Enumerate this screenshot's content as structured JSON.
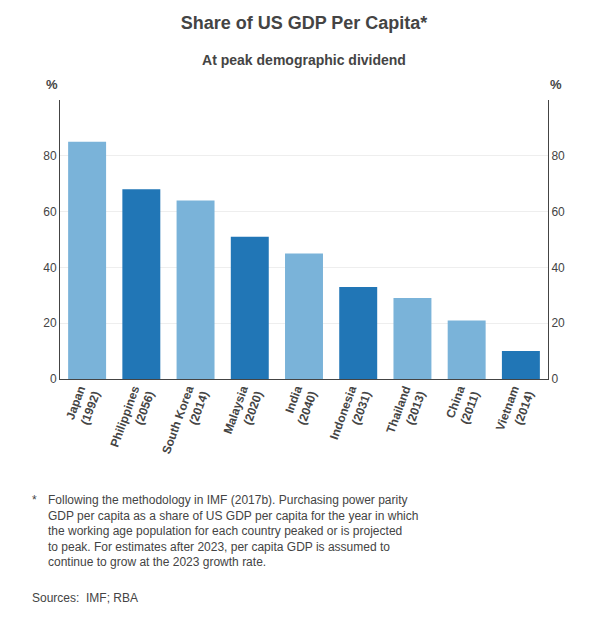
{
  "chart_data": {
    "type": "bar",
    "title": "Share of US GDP Per Capita*",
    "subtitle": "At peak demographic dividend",
    "categories": [
      "Japan\n(1992)",
      "Philippines\n(2056)",
      "South Korea\n(2014)",
      "Malaysia\n(2020)",
      "India\n(2040)",
      "Indonesia\n(2031)",
      "Thailand\n(2013)",
      "China\n(2011)",
      "Vietnam\n(2014)"
    ],
    "values": [
      85,
      68,
      64,
      51,
      45,
      33,
      29,
      21,
      10
    ],
    "colors": [
      "#7ab3d9",
      "#2176b6",
      "#7ab3d9",
      "#2176b6",
      "#7ab3d9",
      "#2176b6",
      "#7ab3d9",
      "#7ab3d9",
      "#2176b6"
    ],
    "ylim": [
      0,
      100
    ],
    "yticks": [
      0,
      20,
      40,
      60,
      80
    ],
    "y2lim": [
      0,
      100
    ],
    "y2ticks": [
      0,
      20,
      40,
      60,
      80
    ],
    "ylabel": "%",
    "y2label": "%",
    "grid": true,
    "footnote_marker": "*",
    "footnote": "Following the methodology in IMF (2017b). Purchasing power parity\nGDP per capita as a share of US GDP per capita for the year in which\nthe working age population for each country peaked or is projected\nto peak. For estimates after 2023, per capita GDP is assumed to\ncontinue to grow at the 2023 growth rate.",
    "sources": "Sources:  IMF; RBA"
  }
}
